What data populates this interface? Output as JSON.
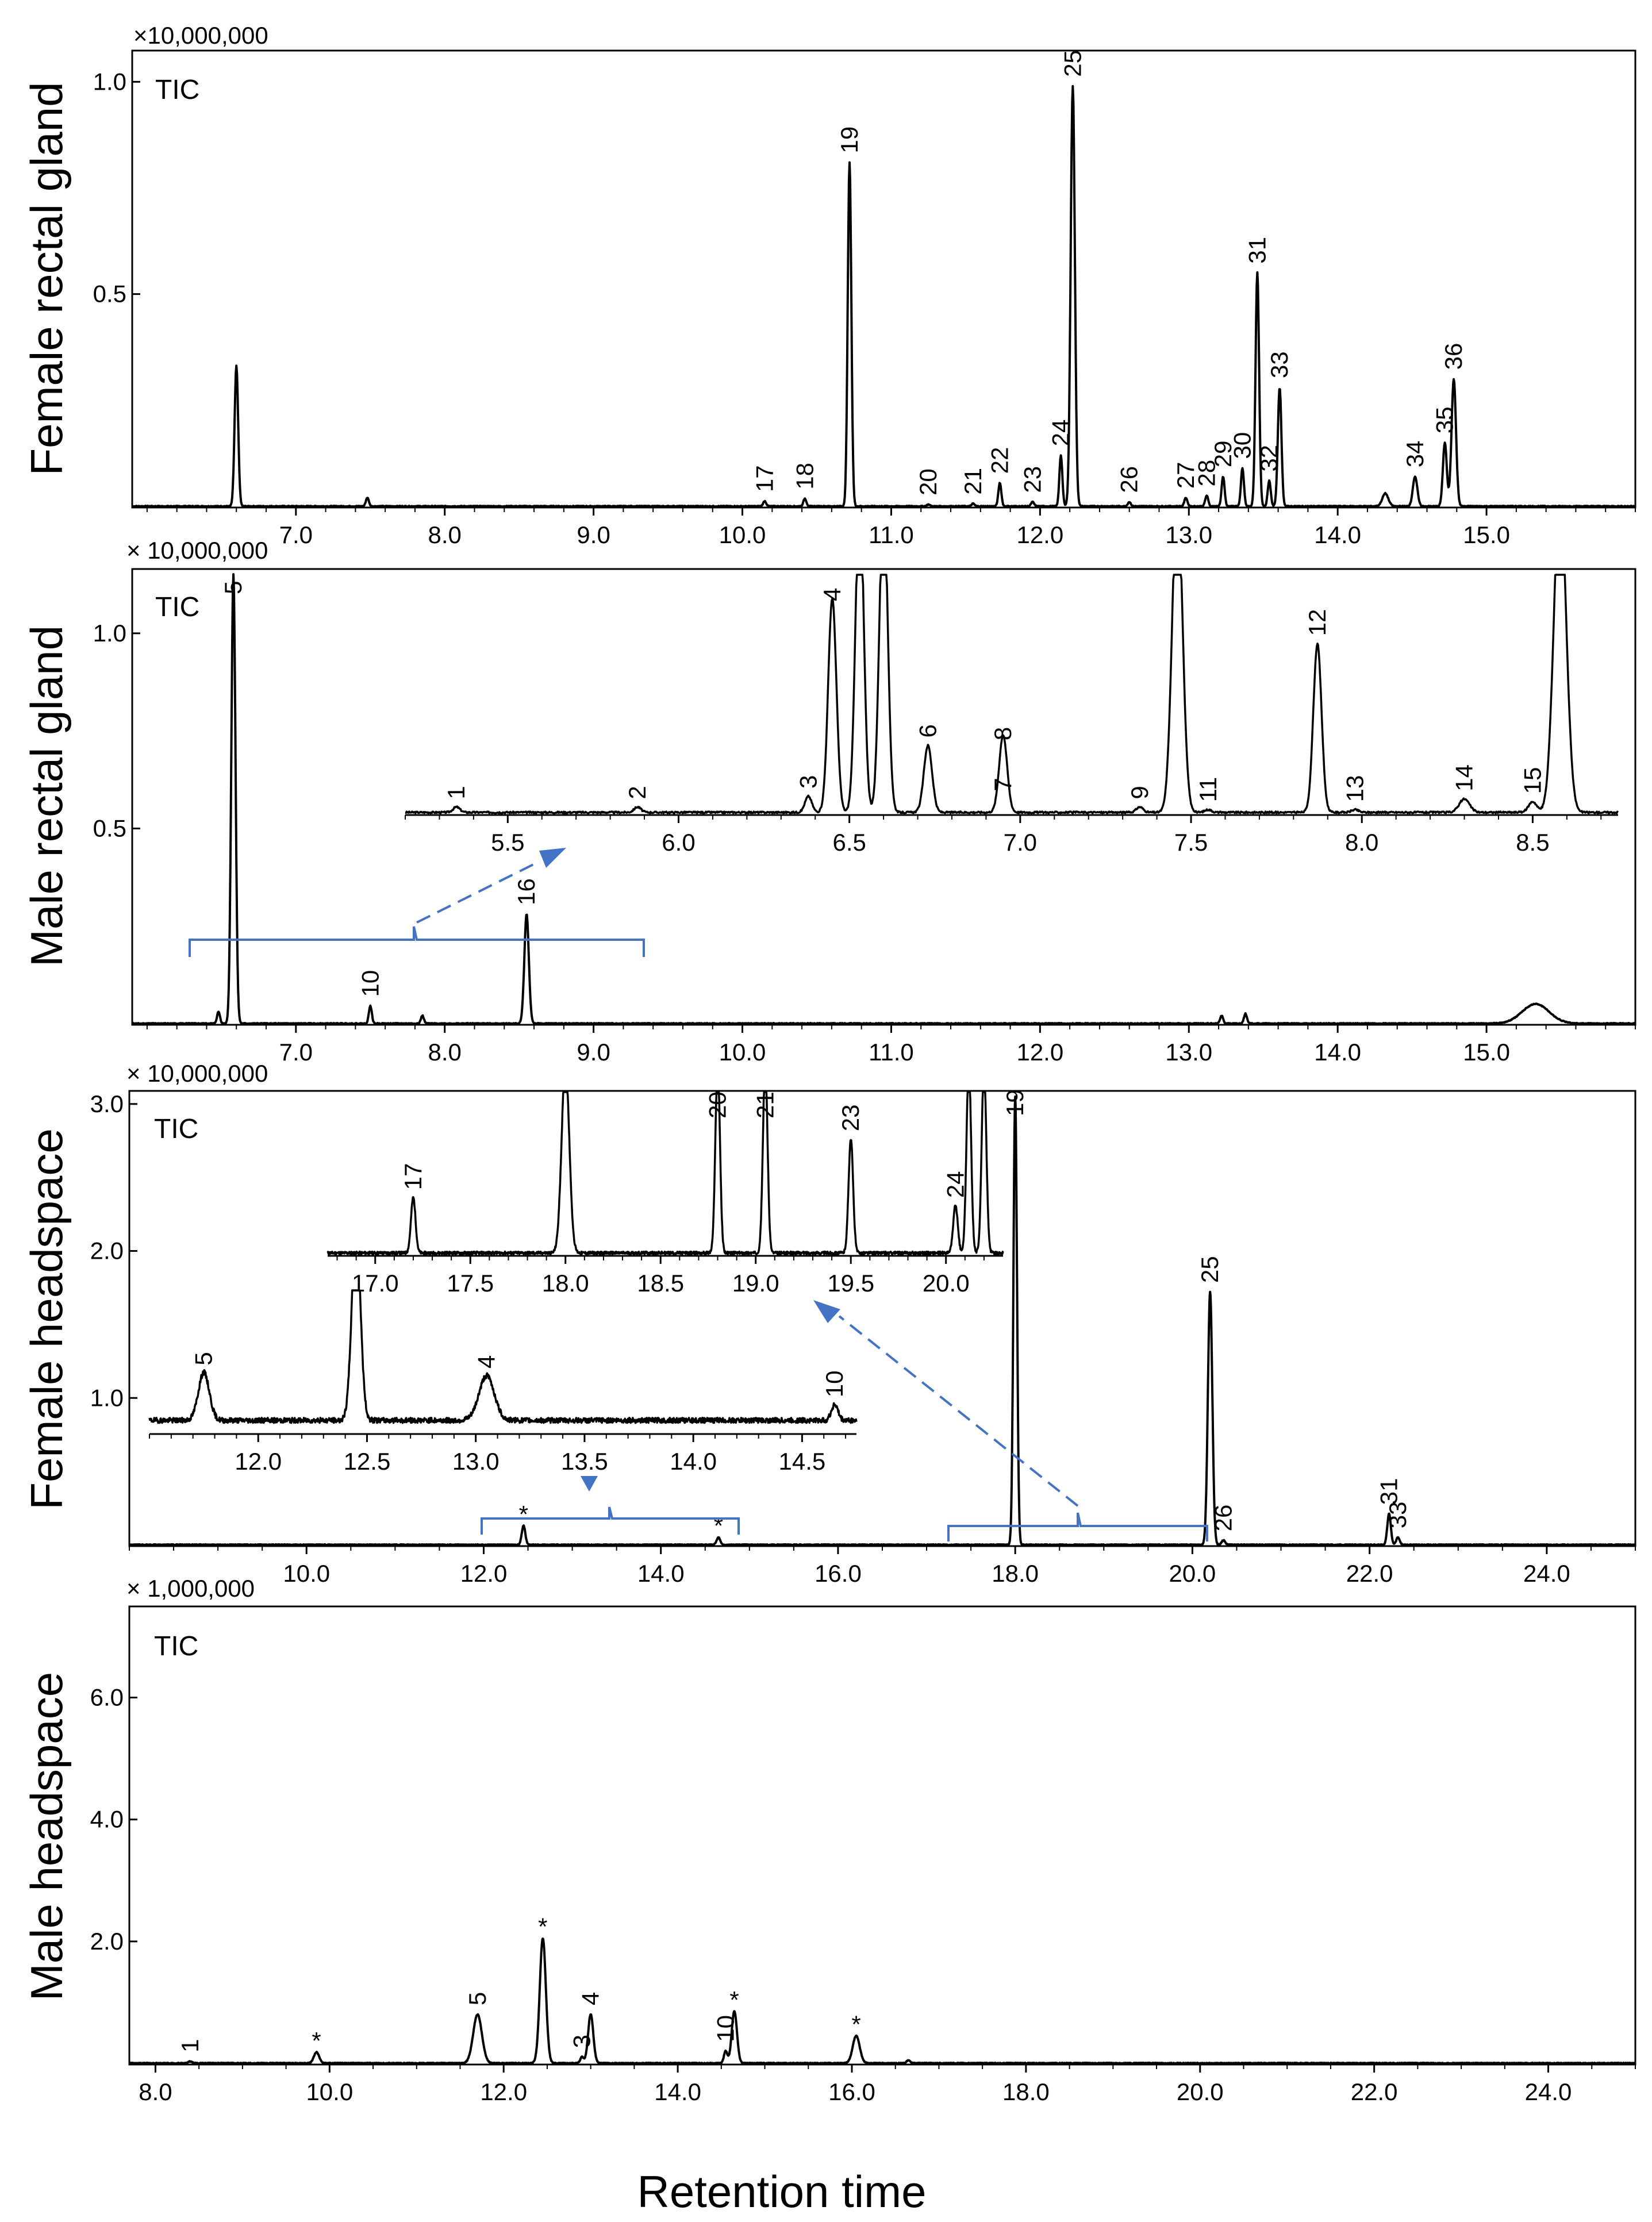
{
  "figure": {
    "x_axis_title": "Retention time",
    "colors": {
      "trace": "#000000",
      "annotation": "#4472C4"
    }
  },
  "chart_data": [
    {
      "type": "line",
      "name": "Female rectal gland",
      "ylabel": "Female rectal gland",
      "trace_label": "TIC",
      "y_multiplier": "×10,000,000",
      "xlim": [
        5.9,
        16.0
      ],
      "ylim": [
        0,
        1.06
      ],
      "x_ticks": [
        7.0,
        8.0,
        9.0,
        10.0,
        11.0,
        12.0,
        13.0,
        14.0,
        15.0
      ],
      "x_tick_labels": [
        "7.0",
        "8.0",
        "9.0",
        "10.0",
        "11.0",
        "12.0",
        "13.0",
        "14.0",
        "15.0"
      ],
      "y_ticks": [
        0.5,
        1.0
      ],
      "y_tick_labels": [
        "0.5",
        "1.0"
      ],
      "peaks": [
        {
          "label": "",
          "rt": 6.6,
          "h": 0.33,
          "w": 0.012
        },
        {
          "label": "",
          "rt": 7.48,
          "h": 0.02,
          "w": 0.01
        },
        {
          "label": "17",
          "rt": 10.15,
          "h": 0.012,
          "w": 0.01
        },
        {
          "label": "18",
          "rt": 10.42,
          "h": 0.018,
          "w": 0.01
        },
        {
          "label": "19",
          "rt": 10.72,
          "h": 0.81,
          "w": 0.012
        },
        {
          "label": "20",
          "rt": 11.25,
          "h": 0.004,
          "w": 0.01
        },
        {
          "label": "21",
          "rt": 11.55,
          "h": 0.006,
          "w": 0.01
        },
        {
          "label": "22",
          "rt": 11.73,
          "h": 0.055,
          "w": 0.01
        },
        {
          "label": "23",
          "rt": 11.95,
          "h": 0.01,
          "w": 0.01
        },
        {
          "label": "24",
          "rt": 12.14,
          "h": 0.12,
          "w": 0.01
        },
        {
          "label": "25",
          "rt": 12.22,
          "h": 0.99,
          "w": 0.014
        },
        {
          "label": "26",
          "rt": 12.6,
          "h": 0.01,
          "w": 0.01
        },
        {
          "label": "27",
          "rt": 12.98,
          "h": 0.02,
          "w": 0.01
        },
        {
          "label": "28",
          "rt": 13.12,
          "h": 0.025,
          "w": 0.01
        },
        {
          "label": "29",
          "rt": 13.23,
          "h": 0.07,
          "w": 0.01
        },
        {
          "label": "30",
          "rt": 13.36,
          "h": 0.09,
          "w": 0.01
        },
        {
          "label": "31",
          "rt": 13.46,
          "h": 0.55,
          "w": 0.012
        },
        {
          "label": "32",
          "rt": 13.54,
          "h": 0.06,
          "w": 0.01
        },
        {
          "label": "33",
          "rt": 13.61,
          "h": 0.28,
          "w": 0.012
        },
        {
          "label": "",
          "rt": 14.32,
          "h": 0.03,
          "w": 0.02
        },
        {
          "label": "34",
          "rt": 14.52,
          "h": 0.07,
          "w": 0.015
        },
        {
          "label": "35",
          "rt": 14.72,
          "h": 0.15,
          "w": 0.013
        },
        {
          "label": "36",
          "rt": 14.78,
          "h": 0.3,
          "w": 0.015
        }
      ]
    },
    {
      "type": "line",
      "name": "Male rectal gland",
      "ylabel": "Male rectal gland",
      "trace_label": "TIC",
      "y_multiplier": "× 10,000,000",
      "xlim": [
        5.9,
        16.0
      ],
      "ylim": [
        0,
        1.15
      ],
      "x_ticks": [
        7.0,
        8.0,
        9.0,
        10.0,
        11.0,
        12.0,
        13.0,
        14.0,
        15.0
      ],
      "x_tick_labels": [
        "7.0",
        "8.0",
        "9.0",
        "10.0",
        "11.0",
        "12.0",
        "13.0",
        "14.0",
        "15.0"
      ],
      "y_ticks": [
        0.5,
        1.0
      ],
      "y_tick_labels": [
        "0.5",
        "1.0"
      ],
      "peaks": [
        {
          "label": "",
          "rt": 6.48,
          "h": 0.03,
          "w": 0.01
        },
        {
          "label": "5",
          "rt": 6.58,
          "h": 1.15,
          "w": 0.014
        },
        {
          "label": "10",
          "rt": 7.5,
          "h": 0.045,
          "w": 0.01
        },
        {
          "label": "",
          "rt": 7.85,
          "h": 0.02,
          "w": 0.01
        },
        {
          "label": "16",
          "rt": 8.55,
          "h": 0.28,
          "w": 0.015
        },
        {
          "label": "",
          "rt": 13.22,
          "h": 0.02,
          "w": 0.01
        },
        {
          "label": "",
          "rt": 13.38,
          "h": 0.025,
          "w": 0.01
        },
        {
          "label": "",
          "rt": 15.33,
          "h": 0.05,
          "w": 0.09
        }
      ],
      "inset": {
        "xlim": [
          5.2,
          8.75
        ],
        "ylim": [
          0,
          1.0
        ],
        "x_ticks": [
          5.5,
          6.0,
          6.5,
          7.0,
          7.5,
          8.0,
          8.5
        ],
        "x_tick_labels": [
          "5.5",
          "6.0",
          "6.5",
          "7.0",
          "7.5",
          "8.0",
          "8.5"
        ],
        "peaks": [
          {
            "label": "1",
            "rt": 5.35,
            "h": 0.02,
            "w": 0.01
          },
          {
            "label": "2",
            "rt": 5.88,
            "h": 0.02,
            "w": 0.01
          },
          {
            "label": "3",
            "rt": 6.38,
            "h": 0.06,
            "w": 0.01
          },
          {
            "label": "4",
            "rt": 6.45,
            "h": 0.8,
            "w": 0.012
          },
          {
            "label": "",
            "rt": 6.53,
            "h": 1.2,
            "w": 0.012
          },
          {
            "label": "",
            "rt": 6.6,
            "h": 1.2,
            "w": 0.012
          },
          {
            "label": "6",
            "rt": 6.73,
            "h": 0.25,
            "w": 0.012
          },
          {
            "label": "7",
            "rt": 6.95,
            "h": 0.05,
            "w": 0.01
          },
          {
            "label": "8",
            "rt": 6.95,
            "h": 0.24,
            "w": 0.012
          },
          {
            "label": "9",
            "rt": 7.35,
            "h": 0.02,
            "w": 0.01
          },
          {
            "label": "",
            "rt": 7.46,
            "h": 1.2,
            "w": 0.015
          },
          {
            "label": "11",
            "rt": 7.55,
            "h": 0.01,
            "w": 0.01
          },
          {
            "label": "12",
            "rt": 7.87,
            "h": 0.63,
            "w": 0.012
          },
          {
            "label": "13",
            "rt": 7.98,
            "h": 0.01,
            "w": 0.01
          },
          {
            "label": "14",
            "rt": 8.3,
            "h": 0.05,
            "w": 0.015
          },
          {
            "label": "15",
            "rt": 8.5,
            "h": 0.04,
            "w": 0.012
          },
          {
            "label": "",
            "rt": 8.58,
            "h": 1.2,
            "w": 0.018
          }
        ]
      }
    },
    {
      "type": "line",
      "name": "Female headspace",
      "ylabel": "Female headspace",
      "trace_label": "TIC",
      "y_multiplier": "× 10,000,000",
      "xlim": [
        8.0,
        25.0
      ],
      "ylim": [
        0,
        3.05
      ],
      "x_ticks": [
        10.0,
        12.0,
        14.0,
        16.0,
        18.0,
        20.0,
        22.0,
        24.0
      ],
      "x_tick_labels": [
        "10.0",
        "12.0",
        "14.0",
        "16.0",
        "18.0",
        "20.0",
        "22.0",
        "24.0"
      ],
      "y_ticks": [
        1.0,
        2.0,
        3.0
      ],
      "y_tick_labels": [
        "1.0",
        "2.0",
        "3.0"
      ],
      "peaks": [
        {
          "label": "*",
          "rt": 12.45,
          "h": 0.13,
          "w": 0.02
        },
        {
          "label": "*",
          "rt": 14.65,
          "h": 0.05,
          "w": 0.02
        },
        {
          "label": "19",
          "rt": 18.0,
          "h": 3.05,
          "w": 0.02
        },
        {
          "label": "25",
          "rt": 20.2,
          "h": 1.72,
          "w": 0.025
        },
        {
          "label": "26",
          "rt": 20.35,
          "h": 0.03,
          "w": 0.02
        },
        {
          "label": "31",
          "rt": 22.22,
          "h": 0.21,
          "w": 0.02
        },
        {
          "label": "33",
          "rt": 22.32,
          "h": 0.05,
          "w": 0.02
        }
      ],
      "inset_top": {
        "xlim": [
          16.75,
          20.3
        ],
        "x_ticks": [
          17.0,
          17.5,
          18.0,
          18.5,
          19.0,
          19.5,
          20.0
        ],
        "x_tick_labels": [
          "17.0",
          "17.5",
          "18.0",
          "18.5",
          "19.0",
          "19.5",
          "20.0"
        ],
        "peaks": [
          {
            "label": "17",
            "rt": 17.2,
            "h": 0.35,
            "w": 0.012
          },
          {
            "label": "",
            "rt": 18.0,
            "h": 1.2,
            "w": 0.02
          },
          {
            "label": "20",
            "rt": 18.8,
            "h": 1.2,
            "w": 0.012
          },
          {
            "label": "21",
            "rt": 19.05,
            "h": 1.2,
            "w": 0.012
          },
          {
            "label": "23",
            "rt": 19.5,
            "h": 0.72,
            "w": 0.012
          },
          {
            "label": "24",
            "rt": 20.05,
            "h": 0.3,
            "w": 0.012
          },
          {
            "label": "",
            "rt": 20.12,
            "h": 1.2,
            "w": 0.012
          },
          {
            "label": "",
            "rt": 20.2,
            "h": 1.2,
            "w": 0.012
          }
        ]
      },
      "inset_left": {
        "xlim": [
          11.5,
          14.75
        ],
        "x_ticks": [
          12.0,
          12.5,
          13.0,
          13.5,
          14.0,
          14.5
        ],
        "x_tick_labels": [
          "12.0",
          "12.5",
          "13.0",
          "13.5",
          "14.0",
          "14.5"
        ],
        "peaks": [
          {
            "label": "5",
            "rt": 11.75,
            "h": 0.3,
            "w": 0.025
          },
          {
            "label": "",
            "rt": 12.45,
            "h": 1.2,
            "w": 0.02
          },
          {
            "label": "4",
            "rt": 13.05,
            "h": 0.28,
            "w": 0.035
          },
          {
            "label": "10",
            "rt": 14.65,
            "h": 0.1,
            "w": 0.015
          }
        ]
      }
    },
    {
      "type": "line",
      "name": "Male headspace",
      "ylabel": "Male headspace",
      "trace_label": "TIC",
      "y_multiplier": "× 1,000,000",
      "xlim": [
        7.7,
        25.0
      ],
      "ylim": [
        0,
        7.4
      ],
      "x_ticks": [
        8.0,
        10.0,
        12.0,
        14.0,
        16.0,
        18.0,
        20.0,
        22.0,
        24.0
      ],
      "x_tick_labels": [
        "8.0",
        "10.0",
        "12.0",
        "14.0",
        "16.0",
        "18.0",
        "20.0",
        "22.0",
        "24.0"
      ],
      "y_ticks": [
        2.0,
        4.0,
        6.0
      ],
      "y_tick_labels": [
        "2.0",
        "4.0",
        "6.0"
      ],
      "peaks": [
        {
          "label": "1",
          "rt": 8.4,
          "h": 0.03,
          "w": 0.02
        },
        {
          "label": "*",
          "rt": 9.85,
          "h": 0.18,
          "w": 0.03
        },
        {
          "label": "5",
          "rt": 11.7,
          "h": 0.8,
          "w": 0.05
        },
        {
          "label": "*",
          "rt": 12.45,
          "h": 2.05,
          "w": 0.035
        },
        {
          "label": "3",
          "rt": 12.9,
          "h": 0.1,
          "w": 0.02
        },
        {
          "label": "4",
          "rt": 13.0,
          "h": 0.8,
          "w": 0.03
        },
        {
          "label": "10",
          "rt": 14.55,
          "h": 0.2,
          "w": 0.02
        },
        {
          "label": "*",
          "rt": 14.65,
          "h": 0.85,
          "w": 0.03
        },
        {
          "label": "*",
          "rt": 16.05,
          "h": 0.45,
          "w": 0.04
        },
        {
          "label": "",
          "rt": 16.65,
          "h": 0.05,
          "w": 0.02
        }
      ]
    }
  ]
}
